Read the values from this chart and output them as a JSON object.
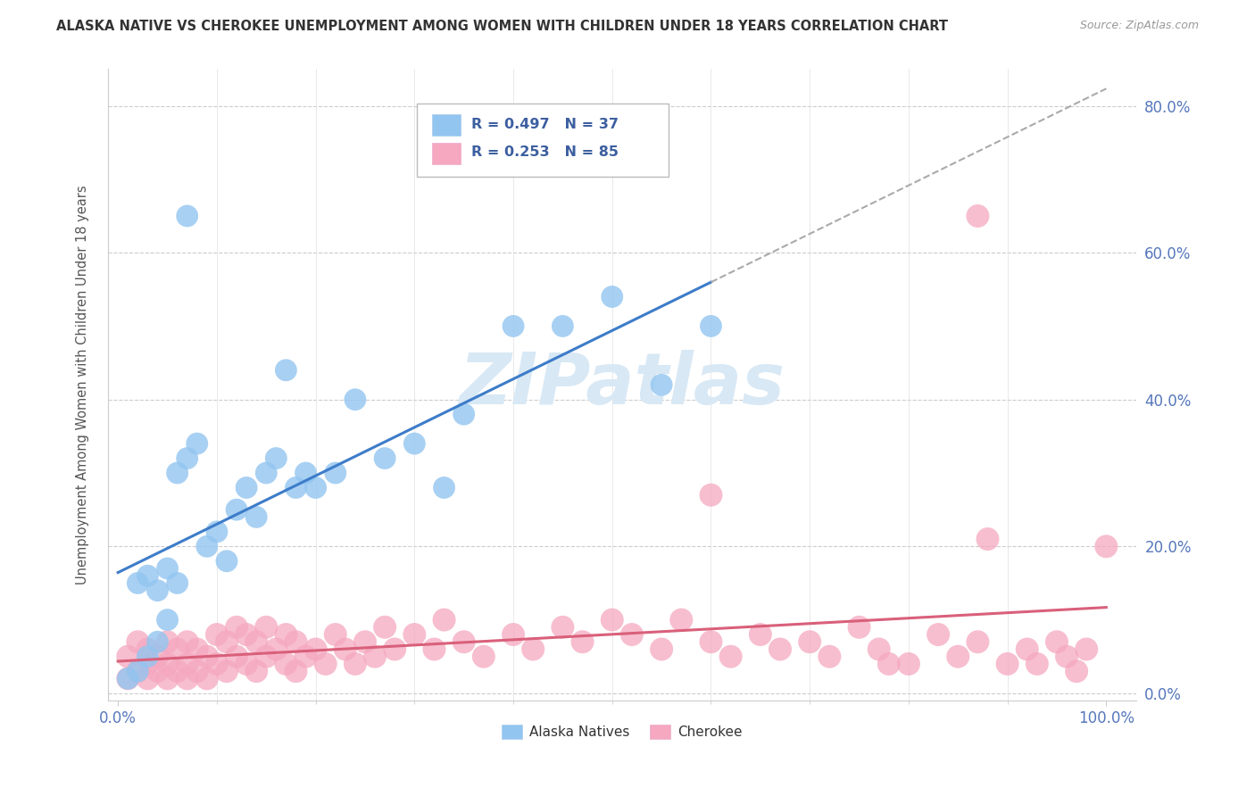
{
  "title": "ALASKA NATIVE VS CHEROKEE UNEMPLOYMENT AMONG WOMEN WITH CHILDREN UNDER 18 YEARS CORRELATION CHART",
  "source": "Source: ZipAtlas.com",
  "ylabel": "Unemployment Among Women with Children Under 18 years",
  "r_alaska": 0.497,
  "n_alaska": 37,
  "r_cherokee": 0.253,
  "n_cherokee": 85,
  "alaska_color": "#92C5F0",
  "cherokee_color": "#F5A8C0",
  "alaska_line_color": "#3D7CC9",
  "cherokee_line_color": "#D9607A",
  "watermark_color": "#D8E8F5",
  "watermark_text": "ZIPatlas",
  "legend_text_color": "#3D5FA0",
  "axis_label_color": "#5577BB",
  "alaska_x": [
    0.01,
    0.02,
    0.02,
    0.03,
    0.03,
    0.04,
    0.04,
    0.05,
    0.05,
    0.06,
    0.06,
    0.07,
    0.08,
    0.09,
    0.1,
    0.11,
    0.12,
    0.13,
    0.14,
    0.15,
    0.16,
    0.17,
    0.18,
    0.19,
    0.2,
    0.22,
    0.24,
    0.27,
    0.3,
    0.33,
    0.35,
    0.4,
    0.45,
    0.5,
    0.55,
    0.6,
    0.07
  ],
  "alaska_y": [
    0.02,
    0.03,
    0.15,
    0.05,
    0.16,
    0.07,
    0.14,
    0.1,
    0.17,
    0.15,
    0.3,
    0.32,
    0.34,
    0.2,
    0.22,
    0.18,
    0.25,
    0.28,
    0.24,
    0.3,
    0.32,
    0.44,
    0.28,
    0.3,
    0.28,
    0.3,
    0.4,
    0.32,
    0.34,
    0.28,
    0.38,
    0.5,
    0.5,
    0.54,
    0.42,
    0.5,
    0.65
  ],
  "cherokee_x": [
    0.01,
    0.01,
    0.02,
    0.02,
    0.03,
    0.03,
    0.03,
    0.04,
    0.04,
    0.05,
    0.05,
    0.05,
    0.06,
    0.06,
    0.07,
    0.07,
    0.07,
    0.08,
    0.08,
    0.09,
    0.09,
    0.1,
    0.1,
    0.11,
    0.11,
    0.12,
    0.12,
    0.13,
    0.13,
    0.14,
    0.14,
    0.15,
    0.15,
    0.16,
    0.17,
    0.17,
    0.18,
    0.18,
    0.19,
    0.2,
    0.21,
    0.22,
    0.23,
    0.24,
    0.25,
    0.26,
    0.27,
    0.28,
    0.3,
    0.32,
    0.33,
    0.35,
    0.37,
    0.4,
    0.42,
    0.45,
    0.47,
    0.5,
    0.52,
    0.55,
    0.57,
    0.6,
    0.62,
    0.65,
    0.67,
    0.7,
    0.72,
    0.75,
    0.77,
    0.8,
    0.83,
    0.85,
    0.87,
    0.88,
    0.9,
    0.92,
    0.93,
    0.95,
    0.96,
    0.97,
    0.98,
    1.0,
    0.87,
    0.78,
    0.6
  ],
  "cherokee_y": [
    0.02,
    0.05,
    0.03,
    0.07,
    0.02,
    0.04,
    0.06,
    0.03,
    0.05,
    0.02,
    0.04,
    0.07,
    0.03,
    0.06,
    0.02,
    0.04,
    0.07,
    0.03,
    0.06,
    0.02,
    0.05,
    0.04,
    0.08,
    0.03,
    0.07,
    0.05,
    0.09,
    0.04,
    0.08,
    0.03,
    0.07,
    0.05,
    0.09,
    0.06,
    0.04,
    0.08,
    0.03,
    0.07,
    0.05,
    0.06,
    0.04,
    0.08,
    0.06,
    0.04,
    0.07,
    0.05,
    0.09,
    0.06,
    0.08,
    0.06,
    0.1,
    0.07,
    0.05,
    0.08,
    0.06,
    0.09,
    0.07,
    0.1,
    0.08,
    0.06,
    0.1,
    0.07,
    0.05,
    0.08,
    0.06,
    0.07,
    0.05,
    0.09,
    0.06,
    0.04,
    0.08,
    0.05,
    0.07,
    0.21,
    0.04,
    0.06,
    0.04,
    0.07,
    0.05,
    0.03,
    0.06,
    0.2,
    0.65,
    0.04,
    0.27
  ],
  "xlim": [
    -0.01,
    1.03
  ],
  "ylim": [
    -0.01,
    0.85
  ],
  "x_ticks": [
    0.0,
    1.0
  ],
  "x_tick_labels": [
    "0.0%",
    "100.0%"
  ],
  "y_ticks": [
    0.0,
    0.2,
    0.4,
    0.6,
    0.8
  ],
  "y_tick_labels": [
    "0.0%",
    "20.0%",
    "40.0%",
    "60.0%",
    "80.0%"
  ],
  "grid_color": "#CCCCCC",
  "grid_style": "--"
}
